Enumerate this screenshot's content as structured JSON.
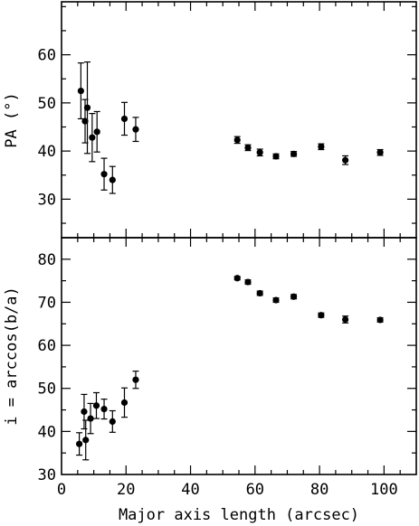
{
  "chart_data": [
    {
      "type": "scatter",
      "panel": "top",
      "xlabel": "",
      "ylabel": "PA (°)",
      "xlim": [
        0,
        110
      ],
      "ylim": [
        22,
        71
      ],
      "yticks_major": [
        30,
        40,
        50,
        60
      ],
      "yticks_minor_step": 5,
      "xticks_major": [
        0,
        20,
        40,
        60,
        80,
        100
      ],
      "xticks_minor_step": 5,
      "show_x_tick_labels": false,
      "grid": false,
      "points": [
        {
          "x": 6.0,
          "y": 52.5,
          "err": 5.8
        },
        {
          "x": 7.3,
          "y": 46.2,
          "err": 4.5
        },
        {
          "x": 8.0,
          "y": 49.0,
          "err": 9.5
        },
        {
          "x": 9.5,
          "y": 42.8,
          "err": 5.0
        },
        {
          "x": 11.0,
          "y": 44.0,
          "err": 4.2
        },
        {
          "x": 13.2,
          "y": 35.2,
          "err": 3.3
        },
        {
          "x": 15.8,
          "y": 34.0,
          "err": 2.8
        },
        {
          "x": 19.5,
          "y": 46.7,
          "err": 3.4
        },
        {
          "x": 23.0,
          "y": 44.5,
          "err": 2.5
        },
        {
          "x": 54.5,
          "y": 42.3,
          "err": 0.7
        },
        {
          "x": 57.8,
          "y": 40.7,
          "err": 0.6
        },
        {
          "x": 61.5,
          "y": 39.7,
          "err": 0.7
        },
        {
          "x": 66.5,
          "y": 38.9,
          "err": 0.5
        },
        {
          "x": 72.0,
          "y": 39.4,
          "err": 0.5
        },
        {
          "x": 80.5,
          "y": 40.9,
          "err": 0.6
        },
        {
          "x": 88.0,
          "y": 38.1,
          "err": 0.9
        },
        {
          "x": 98.8,
          "y": 39.7,
          "err": 0.6
        }
      ]
    },
    {
      "type": "scatter",
      "panel": "bottom",
      "xlabel": "Major axis length (arcsec)",
      "ylabel": "i = arccos(b/a)",
      "xlim": [
        0,
        110
      ],
      "ylim": [
        30,
        85
      ],
      "yticks_major": [
        30,
        40,
        50,
        60,
        70,
        80
      ],
      "yticks_minor_step": 5,
      "xticks_major": [
        0,
        20,
        40,
        60,
        80,
        100
      ],
      "xticks_minor_step": 5,
      "show_x_tick_labels": true,
      "grid": false,
      "points": [
        {
          "x": 5.5,
          "y": 37.1,
          "err": 2.6
        },
        {
          "x": 7.0,
          "y": 44.6,
          "err": 4.0
        },
        {
          "x": 7.5,
          "y": 38.0,
          "err": 4.6
        },
        {
          "x": 9.0,
          "y": 43.0,
          "err": 3.5
        },
        {
          "x": 10.8,
          "y": 46.0,
          "err": 3.0
        },
        {
          "x": 13.2,
          "y": 45.2,
          "err": 2.3
        },
        {
          "x": 15.8,
          "y": 42.3,
          "err": 2.5
        },
        {
          "x": 19.5,
          "y": 46.7,
          "err": 3.4
        },
        {
          "x": 23.0,
          "y": 52.0,
          "err": 2.0
        },
        {
          "x": 54.5,
          "y": 75.6,
          "err": 0.4
        },
        {
          "x": 57.8,
          "y": 74.7,
          "err": 0.5
        },
        {
          "x": 61.5,
          "y": 72.1,
          "err": 0.5
        },
        {
          "x": 66.5,
          "y": 70.5,
          "err": 0.5
        },
        {
          "x": 72.0,
          "y": 71.3,
          "err": 0.5
        },
        {
          "x": 80.5,
          "y": 67.0,
          "err": 0.5
        },
        {
          "x": 88.0,
          "y": 66.0,
          "err": 0.8
        },
        {
          "x": 98.8,
          "y": 65.9,
          "err": 0.5
        }
      ]
    }
  ]
}
